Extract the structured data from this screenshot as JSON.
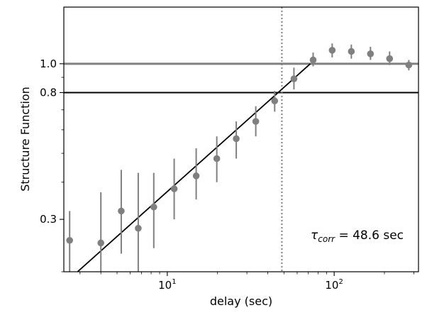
{
  "chart_data": {
    "type": "scatter",
    "xlabel": "delay (sec)",
    "ylabel": "Structure Function",
    "xscale": "log",
    "yscale": "log",
    "xlim": [
      2.4,
      320
    ],
    "ylim": [
      0.2,
      1.55
    ],
    "x_ticks": [
      {
        "value": 10,
        "base": "10",
        "exp": "1"
      },
      {
        "value": 100,
        "base": "10",
        "exp": "2"
      }
    ],
    "y_ticks": [
      {
        "value": 0.3,
        "label": "0.3"
      },
      {
        "value": 0.8,
        "label": "0.8"
      },
      {
        "value": 1.0,
        "label": "1.0"
      }
    ],
    "marker_color": "#808080",
    "points": [
      {
        "x": 2.6,
        "y": 0.255,
        "lo": 0.2,
        "hi": 0.32
      },
      {
        "x": 4.0,
        "y": 0.25,
        "lo": 0.2,
        "hi": 0.37
      },
      {
        "x": 5.3,
        "y": 0.32,
        "lo": 0.23,
        "hi": 0.44
      },
      {
        "x": 6.7,
        "y": 0.28,
        "lo": 0.2,
        "hi": 0.43
      },
      {
        "x": 8.3,
        "y": 0.33,
        "lo": 0.24,
        "hi": 0.43
      },
      {
        "x": 11.0,
        "y": 0.38,
        "lo": 0.3,
        "hi": 0.48
      },
      {
        "x": 14.9,
        "y": 0.42,
        "lo": 0.35,
        "hi": 0.52
      },
      {
        "x": 19.8,
        "y": 0.48,
        "lo": 0.4,
        "hi": 0.57
      },
      {
        "x": 25.9,
        "y": 0.56,
        "lo": 0.48,
        "hi": 0.64
      },
      {
        "x": 33.9,
        "y": 0.64,
        "lo": 0.57,
        "hi": 0.72
      },
      {
        "x": 44.0,
        "y": 0.75,
        "lo": 0.69,
        "hi": 0.81
      },
      {
        "x": 57.4,
        "y": 0.89,
        "lo": 0.82,
        "hi": 0.97
      },
      {
        "x": 74.8,
        "y": 1.03,
        "lo": 0.98,
        "hi": 1.09
      },
      {
        "x": 97.3,
        "y": 1.11,
        "lo": 1.05,
        "hi": 1.17
      },
      {
        "x": 126.7,
        "y": 1.1,
        "lo": 1.04,
        "hi": 1.16
      },
      {
        "x": 165.0,
        "y": 1.08,
        "lo": 1.03,
        "hi": 1.14
      },
      {
        "x": 214.8,
        "y": 1.04,
        "lo": 0.99,
        "hi": 1.1
      },
      {
        "x": 280.0,
        "y": 0.99,
        "lo": 0.95,
        "hi": 1.03
      }
    ],
    "fit_line": {
      "x": [
        2.9,
        72.0
      ],
      "y": [
        0.2,
        1.0
      ],
      "color": "#000000"
    },
    "hlines": [
      {
        "y": 1.0,
        "color": "#808080"
      },
      {
        "y": 0.8,
        "color": "#000000"
      }
    ],
    "vline": {
      "x": 48.6,
      "color": "#808080",
      "style": "dotted"
    },
    "annotation": {
      "symbol": "τ",
      "subscript": "corr",
      "text": " = 48.6 sec"
    }
  }
}
